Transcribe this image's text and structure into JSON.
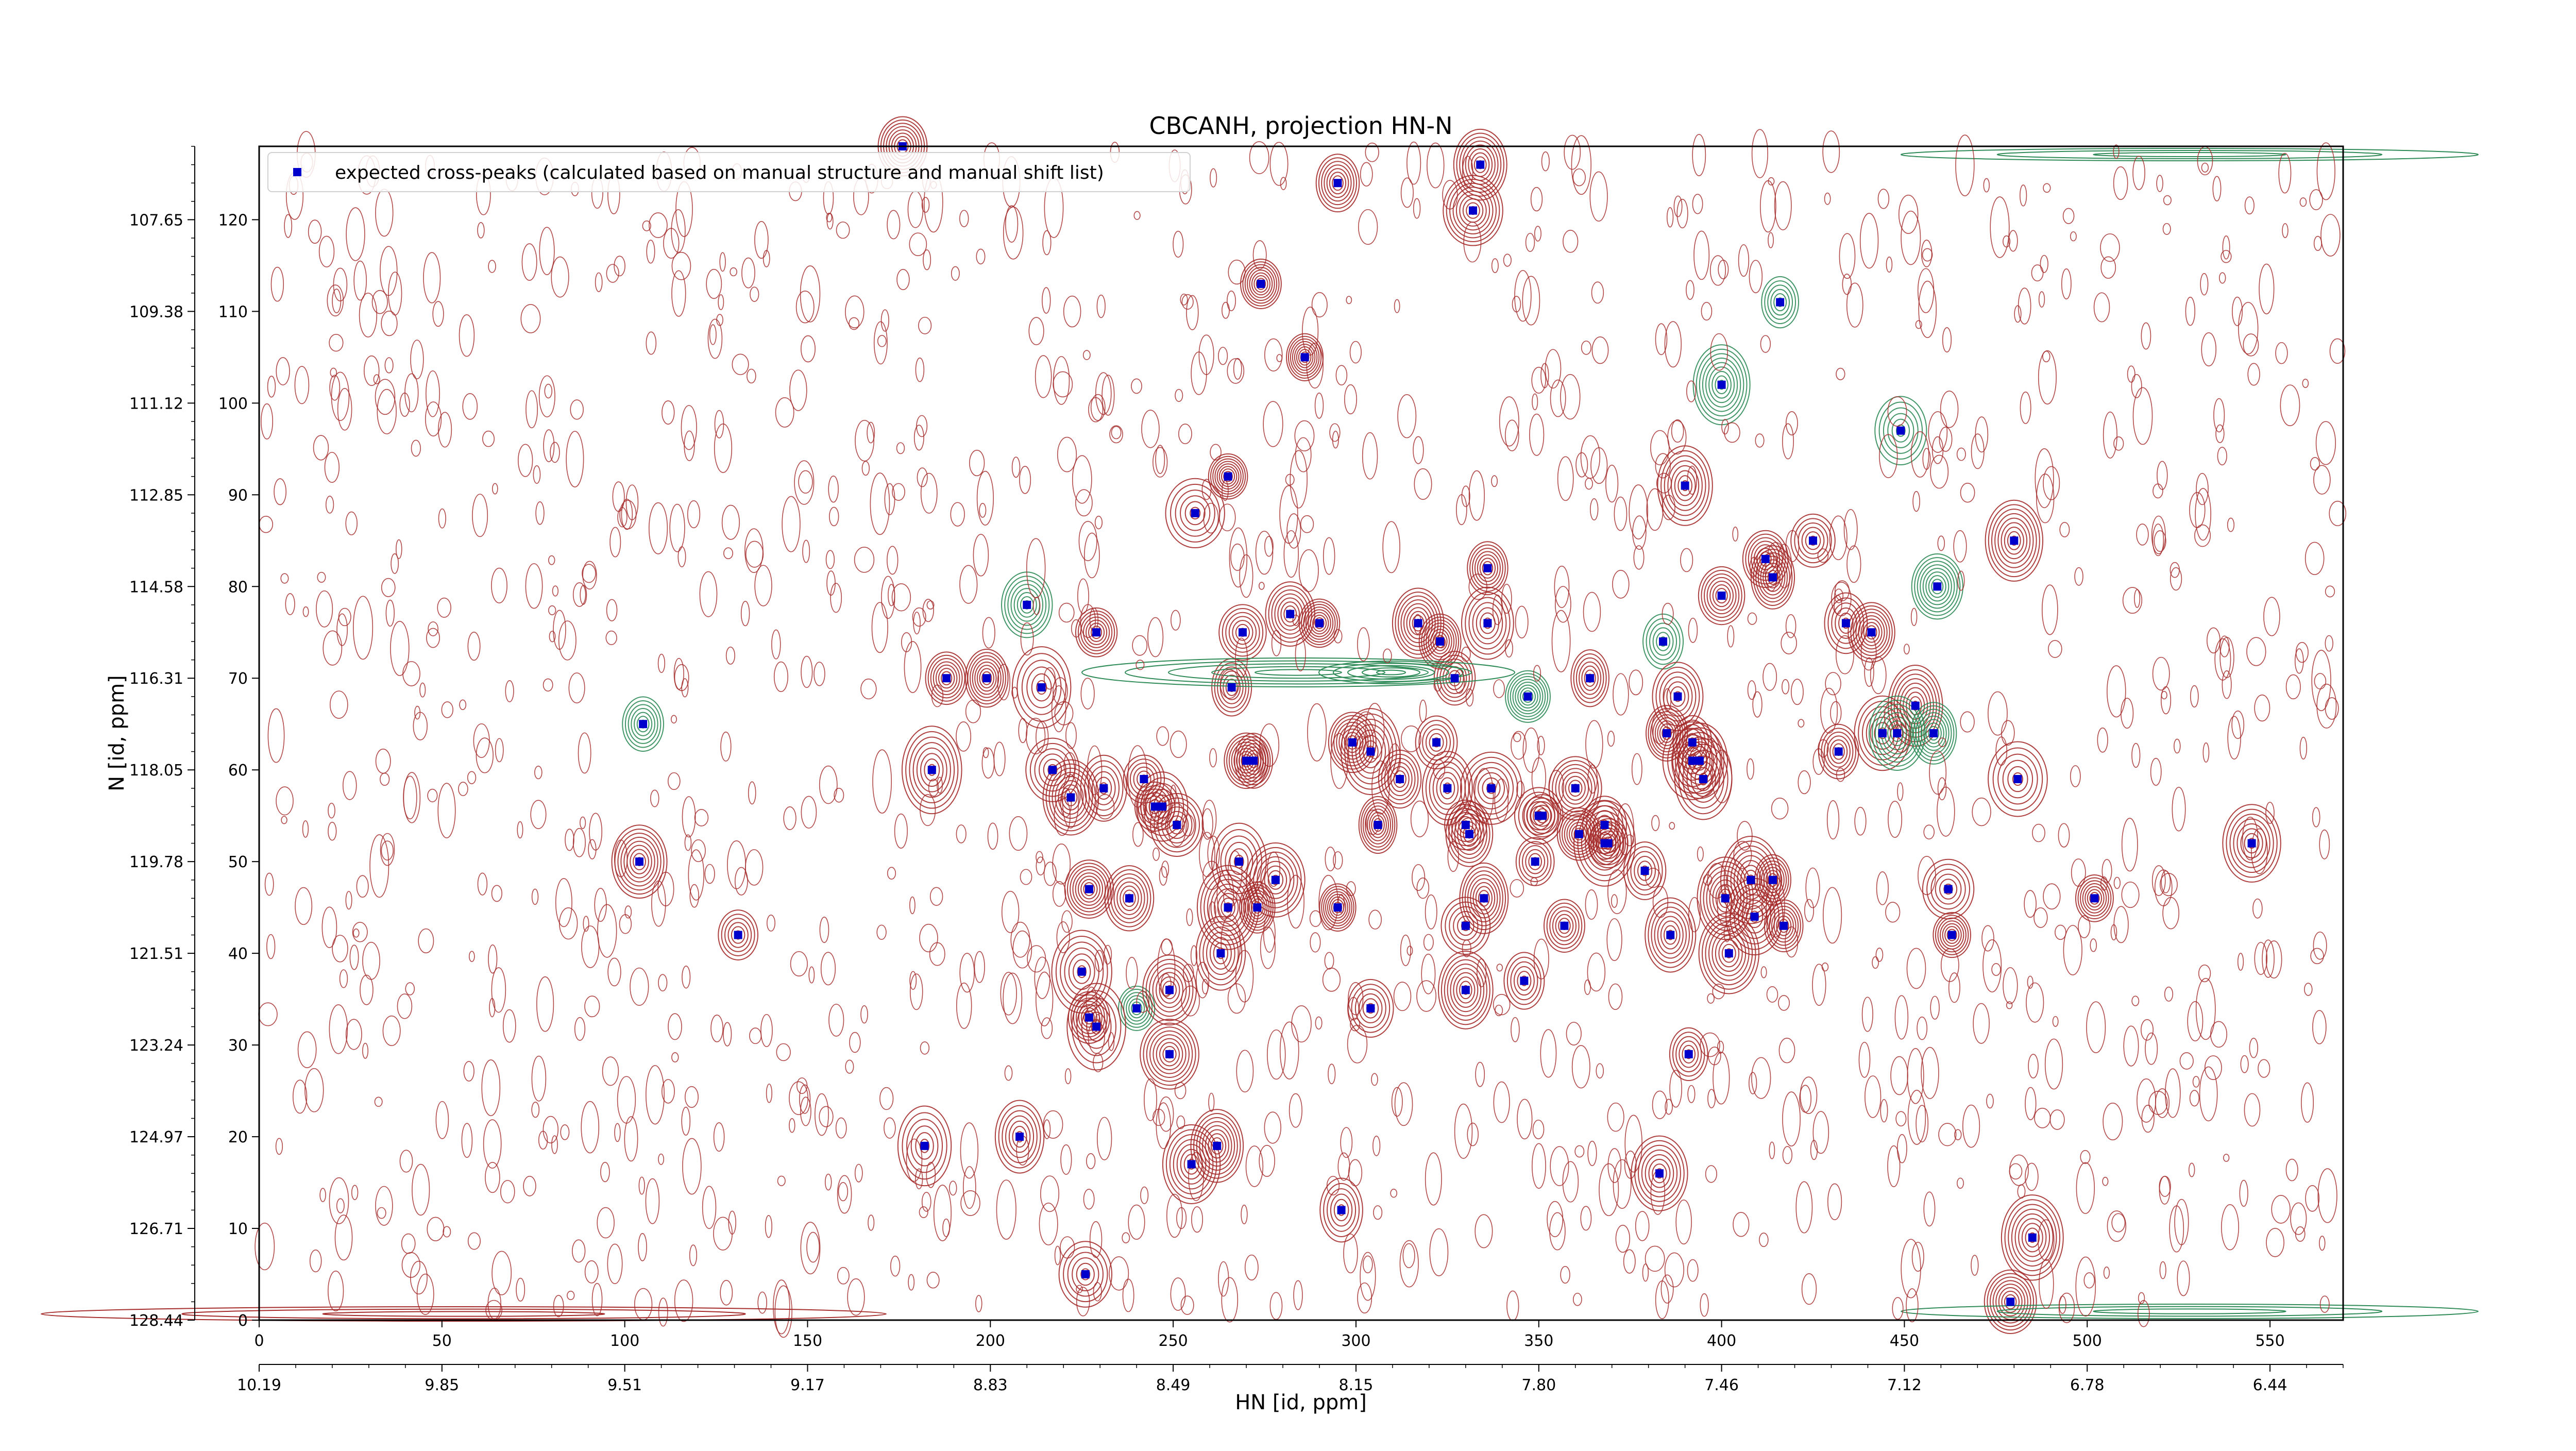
{
  "chart_data": {
    "type": "scatter",
    "title": "CBCANH, projection HN-N",
    "xlabel": "HN [id, ppm]",
    "ylabel": "N [id, ppm]",
    "x_index_range": [
      0,
      570
    ],
    "y_index_range": [
      0,
      128
    ],
    "x_index_ticks": [
      "0",
      "50",
      "100",
      "150",
      "200",
      "250",
      "300",
      "350",
      "400",
      "450",
      "500",
      "550"
    ],
    "x_ppm_ticks": [
      "10.19",
      "9.85",
      "9.51",
      "9.17",
      "8.83",
      "8.49",
      "8.15",
      "7.80",
      "7.46",
      "7.12",
      "6.78",
      "6.44"
    ],
    "y_index_ticks": [
      "0",
      "10",
      "20",
      "30",
      "40",
      "50",
      "60",
      "70",
      "80",
      "90",
      "100",
      "110",
      "120"
    ],
    "y_ppm_ticks": [
      "128.44",
      "126.71",
      "124.97",
      "123.24",
      "121.51",
      "119.78",
      "118.05",
      "116.31",
      "114.58",
      "112.85",
      "111.12",
      "109.38",
      "107.65"
    ],
    "legend": {
      "label": "expected cross-peaks (calculated based on manual structure and manual shift list)",
      "position": "top-left"
    },
    "colors": {
      "positive_contour": "#a52a2a",
      "negative_contour": "#2e8b57",
      "marker": "#0000cc"
    },
    "grid": false,
    "series": [
      {
        "name": "expected cross-peaks (calculated based on manual structure and manual shift list)",
        "points": [
          [
            295,
            124
          ],
          [
            334,
            126
          ],
          [
            332,
            121
          ],
          [
            274,
            113
          ],
          [
            286,
            105
          ],
          [
            416,
            111
          ],
          [
            400,
            102
          ],
          [
            449,
            97
          ],
          [
            256,
            88
          ],
          [
            265,
            92
          ],
          [
            390,
            91
          ],
          [
            480,
            85
          ],
          [
            425,
            85
          ],
          [
            412,
            83
          ],
          [
            414,
            81
          ],
          [
            336,
            82
          ],
          [
            400,
            79
          ],
          [
            459,
            80
          ],
          [
            210,
            78
          ],
          [
            229,
            75
          ],
          [
            282,
            77
          ],
          [
            269,
            75
          ],
          [
            290,
            76
          ],
          [
            317,
            76
          ],
          [
            323,
            74
          ],
          [
            336,
            76
          ],
          [
            384,
            74
          ],
          [
            434,
            76
          ],
          [
            441,
            75
          ],
          [
            188,
            70
          ],
          [
            199,
            70
          ],
          [
            214,
            69
          ],
          [
            266,
            69
          ],
          [
            327,
            70
          ],
          [
            347,
            68
          ],
          [
            364,
            70
          ],
          [
            388,
            68
          ],
          [
            453,
            67
          ],
          [
            105,
            65
          ],
          [
            444,
            64
          ],
          [
            448,
            64
          ],
          [
            458,
            64
          ],
          [
            299,
            63
          ],
          [
            304,
            62
          ],
          [
            322,
            63
          ],
          [
            392,
            63
          ],
          [
            385,
            64
          ],
          [
            432,
            62
          ],
          [
            184,
            60
          ],
          [
            217,
            60
          ],
          [
            270,
            61
          ],
          [
            272,
            61
          ],
          [
            312,
            59
          ],
          [
            325,
            58
          ],
          [
            337,
            58
          ],
          [
            360,
            58
          ],
          [
            394,
            61
          ],
          [
            392,
            61
          ],
          [
            395,
            59
          ],
          [
            481,
            59
          ],
          [
            242,
            59
          ],
          [
            222,
            57
          ],
          [
            231,
            58
          ],
          [
            245,
            56
          ],
          [
            247,
            56
          ],
          [
            251,
            54
          ],
          [
            306,
            54
          ],
          [
            330,
            54
          ],
          [
            331,
            53
          ],
          [
            351,
            55
          ],
          [
            350,
            55
          ],
          [
            361,
            53
          ],
          [
            368,
            54
          ],
          [
            368,
            52
          ],
          [
            369,
            52
          ],
          [
            104,
            50
          ],
          [
            268,
            50
          ],
          [
            349,
            50
          ],
          [
            379,
            49
          ],
          [
            545,
            52
          ],
          [
            227,
            47
          ],
          [
            238,
            46
          ],
          [
            265,
            45
          ],
          [
            278,
            48
          ],
          [
            335,
            46
          ],
          [
            408,
            48
          ],
          [
            414,
            48
          ],
          [
            462,
            47
          ],
          [
            273,
            45
          ],
          [
            295,
            45
          ],
          [
            330,
            43
          ],
          [
            357,
            43
          ],
          [
            401,
            46
          ],
          [
            409,
            44
          ],
          [
            417,
            43
          ],
          [
            502,
            46
          ],
          [
            131,
            42
          ],
          [
            263,
            40
          ],
          [
            386,
            42
          ],
          [
            402,
            40
          ],
          [
            463,
            42
          ],
          [
            225,
            38
          ],
          [
            346,
            37
          ],
          [
            330,
            36
          ],
          [
            240,
            34
          ],
          [
            249,
            36
          ],
          [
            227,
            33
          ],
          [
            229,
            32
          ],
          [
            304,
            34
          ],
          [
            249,
            29
          ],
          [
            391,
            29
          ],
          [
            208,
            20
          ],
          [
            182,
            19
          ],
          [
            262,
            19
          ],
          [
            255,
            17
          ],
          [
            383,
            16
          ],
          [
            296,
            12
          ],
          [
            485,
            9
          ],
          [
            226,
            5
          ],
          [
            479,
            2
          ],
          [
            176,
            128
          ]
        ]
      }
    ]
  }
}
